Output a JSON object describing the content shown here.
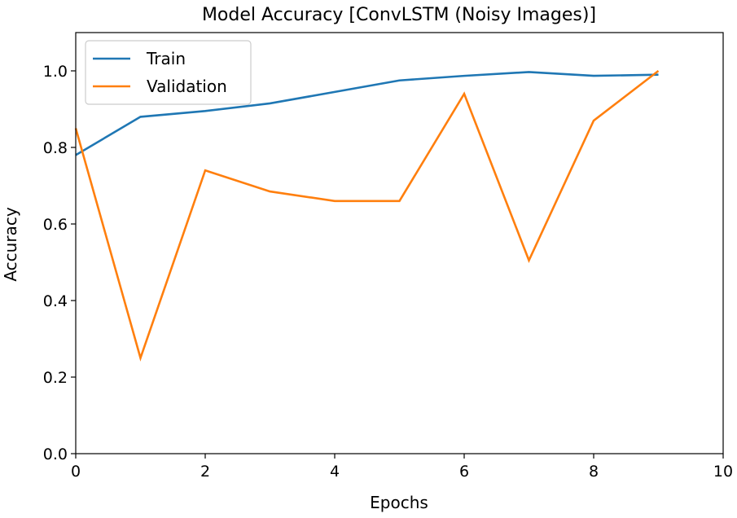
{
  "chart_data": {
    "type": "line",
    "title": "Model Accuracy [ConvLSTM (Noisy Images)]",
    "xlabel": "Epochs",
    "ylabel": "Accuracy",
    "xlim": [
      0,
      10
    ],
    "ylim": [
      0.0,
      1.1
    ],
    "xticks": [
      "0",
      "2",
      "4",
      "6",
      "8",
      "10"
    ],
    "yticks": [
      "0.0",
      "0.2",
      "0.4",
      "0.6",
      "0.8",
      "1.0"
    ],
    "legend_position": "top-left",
    "grid": false,
    "x": [
      0,
      1,
      2,
      3,
      4,
      5,
      6,
      7,
      8,
      9
    ],
    "series": [
      {
        "name": "Train",
        "color": "#1f77b4",
        "values": [
          0.78,
          0.88,
          0.895,
          0.915,
          0.945,
          0.975,
          0.987,
          0.997,
          0.987,
          0.99
        ]
      },
      {
        "name": "Validation",
        "color": "#ff7f0e",
        "values": [
          0.85,
          0.25,
          0.74,
          0.685,
          0.66,
          0.66,
          0.94,
          0.505,
          0.87,
          1.0
        ]
      }
    ]
  }
}
